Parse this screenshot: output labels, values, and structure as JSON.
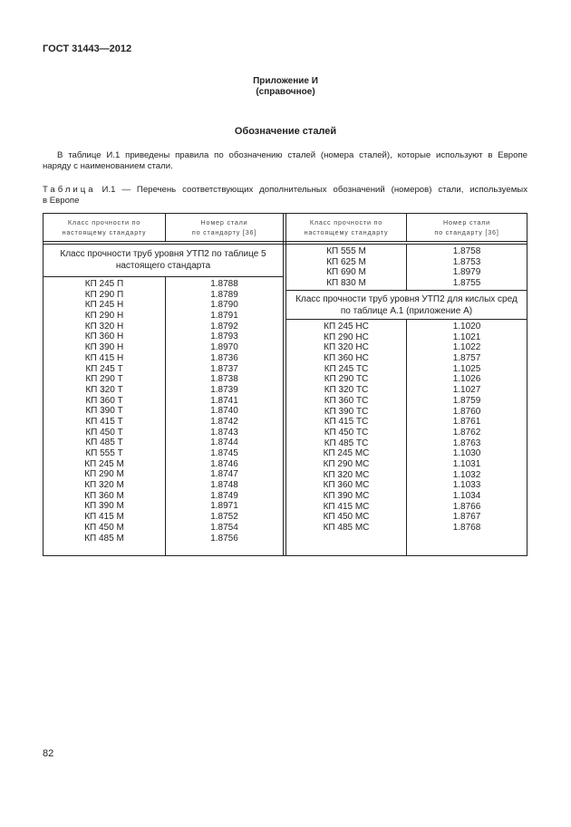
{
  "header": {
    "doc_id": "ГОСТ 31443—2012"
  },
  "appendix": {
    "title": "Приложение И",
    "subtitle": "(справочное)"
  },
  "section_title": "Обозначение сталей",
  "paragraph": {
    "line1": "В таблице И.1 приведены правила по обозначению сталей (номера сталей), которые используют в Европе",
    "line2": "наряду с наименованием стали."
  },
  "caption": {
    "prefix": "Таблица",
    "rest": " И.1 — Перечень соответствующих дополнительных обозначений (номеров) стали, используемых",
    "line2": "в Европе"
  },
  "table": {
    "col1_header": [
      "Класс прочности по",
      "настоящему стандарту"
    ],
    "col2_header": [
      "Номер стали",
      "по стандарту [36]"
    ],
    "left_section": [
      "Класс прочности труб уровня УТП2 по таблице 5",
      "настоящего стандарта"
    ],
    "left_rows": [
      [
        "КП 245 П",
        "1.8788"
      ],
      [
        "КП 290 П",
        "1.8789"
      ],
      [
        "КП 245 Н",
        "1.8790"
      ],
      [
        "КП 290 Н",
        "1.8791"
      ],
      [
        "КП 320 Н",
        "1.8792"
      ],
      [
        "КП 360 Н",
        "1.8793"
      ],
      [
        "КП 390 Н",
        "1.8970"
      ],
      [
        "КП 415 Н",
        "1.8736"
      ],
      [
        "КП 245 Т",
        "1.8737"
      ],
      [
        "КП 290 Т",
        "1.8738"
      ],
      [
        "КП 320 Т",
        "1.8739"
      ],
      [
        "КП 360 Т",
        "1.8741"
      ],
      [
        "КП 390 Т",
        "1.8740"
      ],
      [
        "КП 415 Т",
        "1.8742"
      ],
      [
        "КП 450 Т",
        "1.8743"
      ],
      [
        "КП 485 Т",
        "1.8744"
      ],
      [
        "КП 555 Т",
        "1.8745"
      ],
      [
        "КП 245 М",
        "1.8746"
      ],
      [
        "КП 290 М",
        "1.8747"
      ],
      [
        "КП 320 М",
        "1.8748"
      ],
      [
        "КП 360 М",
        "1.8749"
      ],
      [
        "КП 390 М",
        "1.8971"
      ],
      [
        "КП 415 М",
        "1.8752"
      ],
      [
        "КП 450 М",
        "1.8754"
      ],
      [
        "КП 485 М",
        "1.8756"
      ]
    ],
    "right_rows_top": [
      [
        "КП 555 М",
        "1.8758"
      ],
      [
        "КП 625 М",
        "1.8753"
      ],
      [
        "КП 690 М",
        "1.8979"
      ],
      [
        "КП 830 М",
        "1.8755"
      ]
    ],
    "right_section": [
      "Класс прочности труб уровня УТП2 для кислых сред",
      "по таблице А.1 (приложение А)"
    ],
    "right_rows": [
      [
        "КП 245 НС",
        "1.1020"
      ],
      [
        "КП 290 НС",
        "1.1021"
      ],
      [
        "КП 320 НС",
        "1.1022"
      ],
      [
        "КП 360 НС",
        "1.8757"
      ],
      [
        "КП 245 ТС",
        "1.1025"
      ],
      [
        "КП 290 ТС",
        "1.1026"
      ],
      [
        "КП 320 ТС",
        "1.1027"
      ],
      [
        "КП 360 ТС",
        "1.8759"
      ],
      [
        "КП 390 ТС",
        "1.8760"
      ],
      [
        "КП 415 ТС",
        "1.8761"
      ],
      [
        "КП 450 ТС",
        "1.8762"
      ],
      [
        "КП 485 ТС",
        "1.8763"
      ],
      [
        "КП 245 МС",
        "1.1030"
      ],
      [
        "КП 290 МС",
        "1.1031"
      ],
      [
        "КП 320 МС",
        "1.1032"
      ],
      [
        "КП 360 МС",
        "1.1033"
      ],
      [
        "КП 390 МС",
        "1.1034"
      ],
      [
        "КП 415 МС",
        "1.8766"
      ],
      [
        "КП 450 МС",
        "1.8767"
      ],
      [
        "КП 485 МС",
        "1.8768"
      ]
    ]
  },
  "page_number": "82"
}
